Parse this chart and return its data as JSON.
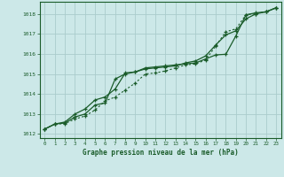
{
  "title": "Graphe pression niveau de la mer (hPa)",
  "bg_color": "#cce8e8",
  "grid_color": "#aacccc",
  "line_color": "#1a5c2a",
  "marker_color": "#1a5c2a",
  "x_ticks": [
    0,
    1,
    2,
    3,
    4,
    5,
    6,
    7,
    8,
    9,
    10,
    11,
    12,
    13,
    14,
    15,
    16,
    17,
    18,
    19,
    20,
    21,
    22,
    23
  ],
  "ylim": [
    1011.8,
    1018.6
  ],
  "yticks": [
    1012,
    1013,
    1014,
    1015,
    1016,
    1017,
    1018
  ],
  "series1": [
    1012.25,
    1012.5,
    1012.6,
    1013.0,
    1013.25,
    1013.7,
    1013.85,
    1014.25,
    1015.05,
    1015.1,
    1015.3,
    1015.35,
    1015.4,
    1015.45,
    1015.5,
    1015.55,
    1015.75,
    1015.95,
    1015.98,
    1016.9,
    1017.95,
    1018.05,
    1018.1,
    1018.3
  ],
  "series2": [
    1012.25,
    1012.5,
    1012.55,
    1012.85,
    1013.0,
    1013.45,
    1013.55,
    1014.75,
    1015.0,
    1015.1,
    1015.25,
    1015.3,
    1015.35,
    1015.4,
    1015.55,
    1015.65,
    1015.9,
    1016.45,
    1016.95,
    1017.15,
    1017.75,
    1018.0,
    1018.1,
    1018.3
  ],
  "series3": [
    1012.25,
    1012.5,
    1012.52,
    1012.75,
    1012.9,
    1013.2,
    1013.65,
    1013.85,
    1014.2,
    1014.55,
    1015.0,
    1015.05,
    1015.15,
    1015.3,
    1015.45,
    1015.5,
    1015.7,
    1016.4,
    1017.1,
    1017.25,
    1017.95,
    1018.0,
    1018.1,
    1018.3
  ]
}
